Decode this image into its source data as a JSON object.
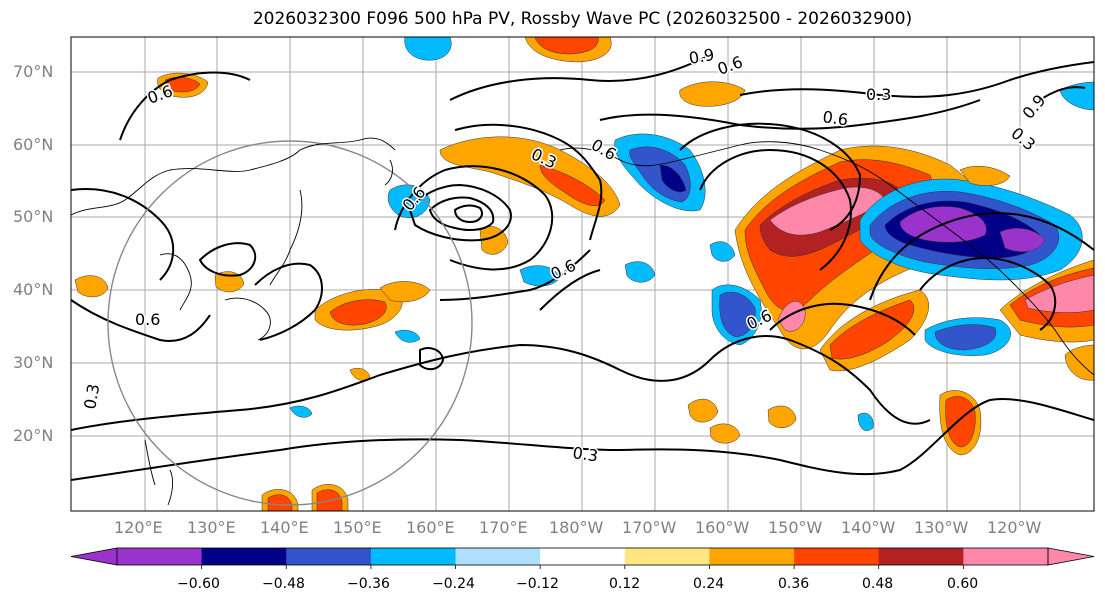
{
  "title": "2026032300 F096 500 hPa PV, Rossby Wave PC (2026032500 - 2026032900)",
  "lat_labels": [
    "70°N",
    "60°N",
    "50°N",
    "40°N",
    "30°N",
    "20°N"
  ],
  "lon_labels": [
    "120°E",
    "130°E",
    "140°E",
    "150°E",
    "160°E",
    "170°E",
    "180°W",
    "170°W",
    "160°W",
    "150°W",
    "140°W",
    "130°W",
    "120°W"
  ],
  "contour_labels": [
    "0.9",
    "0.6",
    "0.3",
    "0.6",
    "0.3",
    "0.6",
    "0.6",
    "0.6",
    "0.3",
    "0.6",
    "0.9",
    "0.6",
    "0.6",
    "0.3",
    "0.3"
  ],
  "colorbar": {
    "colors": [
      "#9933cc",
      "#000088",
      "#3355cc",
      "#00bbff",
      "#b0e0ff",
      "#ffffff",
      "#ffe680",
      "#ffa500",
      "#ff4500",
      "#b22222",
      "#ff88aa"
    ],
    "tick_labels": [
      "−0.60",
      "−0.48",
      "−0.36",
      "−0.24",
      "−0.12",
      "0.12",
      "0.24",
      "0.36",
      "0.48",
      "0.60"
    ]
  }
}
